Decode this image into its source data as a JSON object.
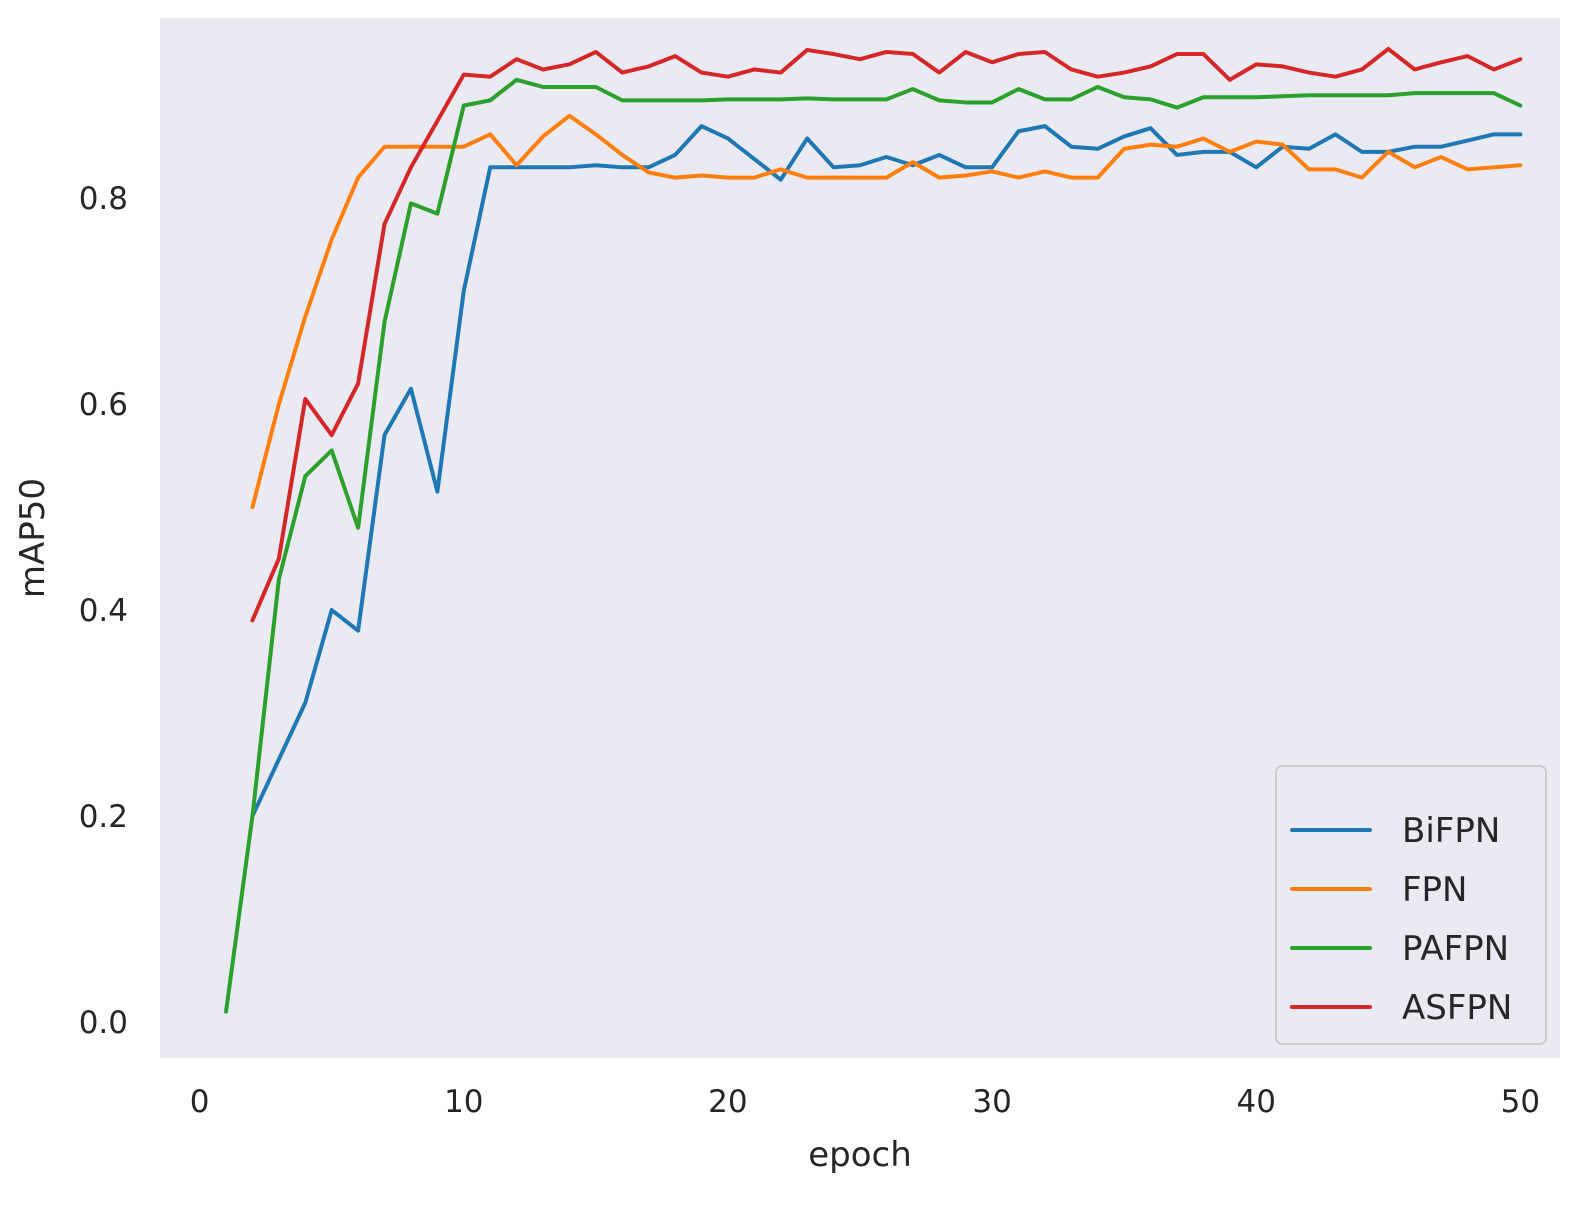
{
  "chart_data": {
    "type": "line",
    "title": "",
    "xlabel": "epoch",
    "ylabel": "mAP50",
    "xlim": [
      -1.5,
      51.5
    ],
    "ylim": [
      -0.035,
      0.975
    ],
    "xticks": [
      0,
      10,
      20,
      30,
      40,
      50
    ],
    "yticks": [
      0.0,
      0.2,
      0.4,
      0.6,
      0.8
    ],
    "xtick_labels": [
      "0",
      "10",
      "20",
      "30",
      "40",
      "50"
    ],
    "ytick_labels": [
      "0.0",
      "0.2",
      "0.4",
      "0.6",
      "0.8"
    ],
    "grid": false,
    "legend": {
      "position": "lower-right"
    },
    "series": [
      {
        "name": "BiFPN",
        "color": "#1f77b4",
        "x": [
          2,
          3,
          4,
          5,
          6,
          7,
          8,
          9,
          10,
          11,
          12,
          13,
          14,
          15,
          16,
          17,
          18,
          19,
          20,
          21,
          22,
          23,
          24,
          25,
          26,
          27,
          28,
          29,
          30,
          31,
          32,
          33,
          34,
          35,
          36,
          37,
          38,
          39,
          40,
          41,
          42,
          43,
          44,
          45,
          46,
          47,
          48,
          49,
          50
        ],
        "y": [
          0.2,
          0.255,
          0.31,
          0.4,
          0.38,
          0.57,
          0.615,
          0.515,
          0.71,
          0.83,
          0.83,
          0.83,
          0.83,
          0.832,
          0.83,
          0.83,
          0.842,
          0.87,
          0.858,
          0.838,
          0.818,
          0.858,
          0.83,
          0.832,
          0.84,
          0.832,
          0.842,
          0.83,
          0.83,
          0.865,
          0.87,
          0.85,
          0.848,
          0.86,
          0.868,
          0.842,
          0.845,
          0.845,
          0.83,
          0.85,
          0.848,
          0.862,
          0.845,
          0.845,
          0.85,
          0.85,
          0.856,
          0.862,
          0.862
        ]
      },
      {
        "name": "FPN",
        "color": "#ff7f0e",
        "x": [
          2,
          3,
          4,
          5,
          6,
          7,
          8,
          9,
          10,
          11,
          12,
          13,
          14,
          15,
          16,
          17,
          18,
          19,
          20,
          21,
          22,
          23,
          24,
          25,
          26,
          27,
          28,
          29,
          30,
          31,
          32,
          33,
          34,
          35,
          36,
          37,
          38,
          39,
          40,
          41,
          42,
          43,
          44,
          45,
          46,
          47,
          48,
          49,
          50
        ],
        "y": [
          0.5,
          0.6,
          0.685,
          0.76,
          0.82,
          0.85,
          0.85,
          0.85,
          0.85,
          0.862,
          0.832,
          0.86,
          0.88,
          0.862,
          0.842,
          0.825,
          0.82,
          0.822,
          0.82,
          0.82,
          0.828,
          0.82,
          0.82,
          0.82,
          0.82,
          0.835,
          0.82,
          0.822,
          0.826,
          0.82,
          0.826,
          0.82,
          0.82,
          0.848,
          0.852,
          0.85,
          0.858,
          0.845,
          0.855,
          0.852,
          0.828,
          0.828,
          0.82,
          0.845,
          0.83,
          0.84,
          0.828,
          0.83,
          0.832
        ]
      },
      {
        "name": "PAFPN",
        "color": "#2ca02c",
        "x": [
          1,
          2,
          3,
          4,
          5,
          6,
          7,
          8,
          9,
          10,
          11,
          12,
          13,
          14,
          15,
          16,
          17,
          18,
          19,
          20,
          21,
          22,
          23,
          24,
          25,
          26,
          27,
          28,
          29,
          30,
          31,
          32,
          33,
          34,
          35,
          36,
          37,
          38,
          39,
          40,
          41,
          42,
          43,
          44,
          45,
          46,
          47,
          48,
          49,
          50
        ],
        "y": [
          0.01,
          0.2,
          0.43,
          0.53,
          0.555,
          0.48,
          0.68,
          0.795,
          0.785,
          0.89,
          0.895,
          0.915,
          0.908,
          0.908,
          0.908,
          0.895,
          0.895,
          0.895,
          0.895,
          0.896,
          0.896,
          0.896,
          0.897,
          0.896,
          0.896,
          0.896,
          0.906,
          0.895,
          0.893,
          0.893,
          0.906,
          0.896,
          0.896,
          0.908,
          0.898,
          0.896,
          0.888,
          0.898,
          0.898,
          0.898,
          0.899,
          0.9,
          0.9,
          0.9,
          0.9,
          0.902,
          0.902,
          0.902,
          0.902,
          0.89
        ]
      },
      {
        "name": "ASFPN",
        "color": "#d62728",
        "x": [
          2,
          3,
          4,
          5,
          6,
          7,
          8,
          9,
          10,
          11,
          12,
          13,
          14,
          15,
          16,
          17,
          18,
          19,
          20,
          21,
          22,
          23,
          24,
          25,
          26,
          27,
          28,
          29,
          30,
          31,
          32,
          33,
          34,
          35,
          36,
          37,
          38,
          39,
          40,
          41,
          42,
          43,
          44,
          45,
          46,
          47,
          48,
          49,
          50
        ],
        "y": [
          0.39,
          0.45,
          0.605,
          0.57,
          0.62,
          0.775,
          0.83,
          0.875,
          0.92,
          0.918,
          0.935,
          0.925,
          0.93,
          0.942,
          0.922,
          0.928,
          0.938,
          0.922,
          0.918,
          0.925,
          0.922,
          0.944,
          0.94,
          0.935,
          0.942,
          0.94,
          0.922,
          0.942,
          0.932,
          0.94,
          0.942,
          0.925,
          0.918,
          0.922,
          0.928,
          0.94,
          0.94,
          0.915,
          0.93,
          0.928,
          0.922,
          0.918,
          0.925,
          0.945,
          0.925,
          0.932,
          0.938,
          0.925,
          0.935
        ]
      }
    ]
  }
}
